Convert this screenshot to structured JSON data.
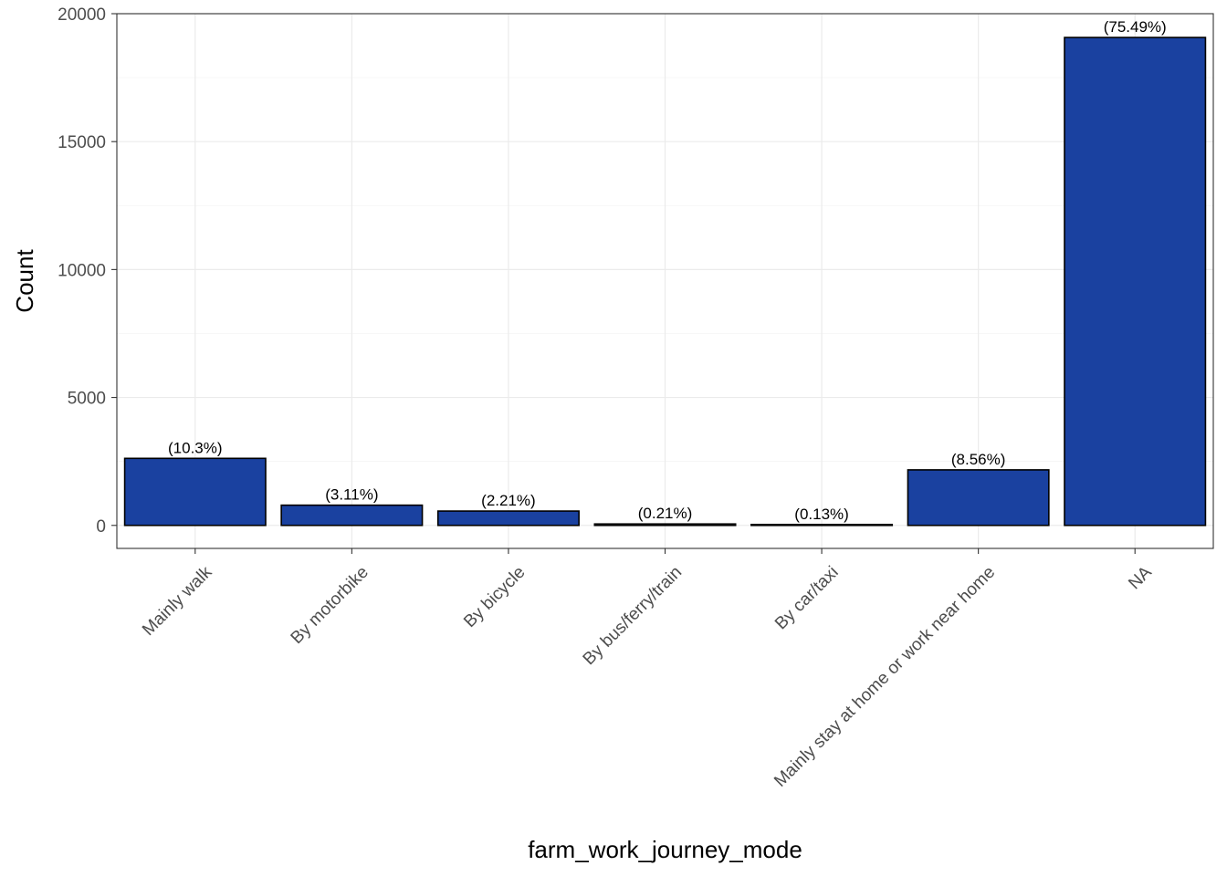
{
  "chart_data": {
    "type": "bar",
    "title": "",
    "xlabel": "farm_work_journey_mode",
    "ylabel": "Count",
    "ylim": [
      -900,
      20000
    ],
    "yticks": [
      0,
      5000,
      10000,
      15000,
      20000
    ],
    "grid": true,
    "bar_color": "#1a41a0",
    "bar_outline": "#000000",
    "categories": [
      "Mainly walk",
      "By motorbike",
      "By bicycle",
      "By bus/ferry/train",
      "By car/taxi",
      "Mainly stay at home or work near home",
      "NA"
    ],
    "values": [
      2620,
      790,
      560,
      55,
      35,
      2170,
      19070
    ],
    "labels": [
      "(10.3%)",
      "(3.11%)",
      "(2.21%)",
      "(0.21%)",
      "(0.13%)",
      "(8.56%)",
      "(75.49%)"
    ]
  }
}
